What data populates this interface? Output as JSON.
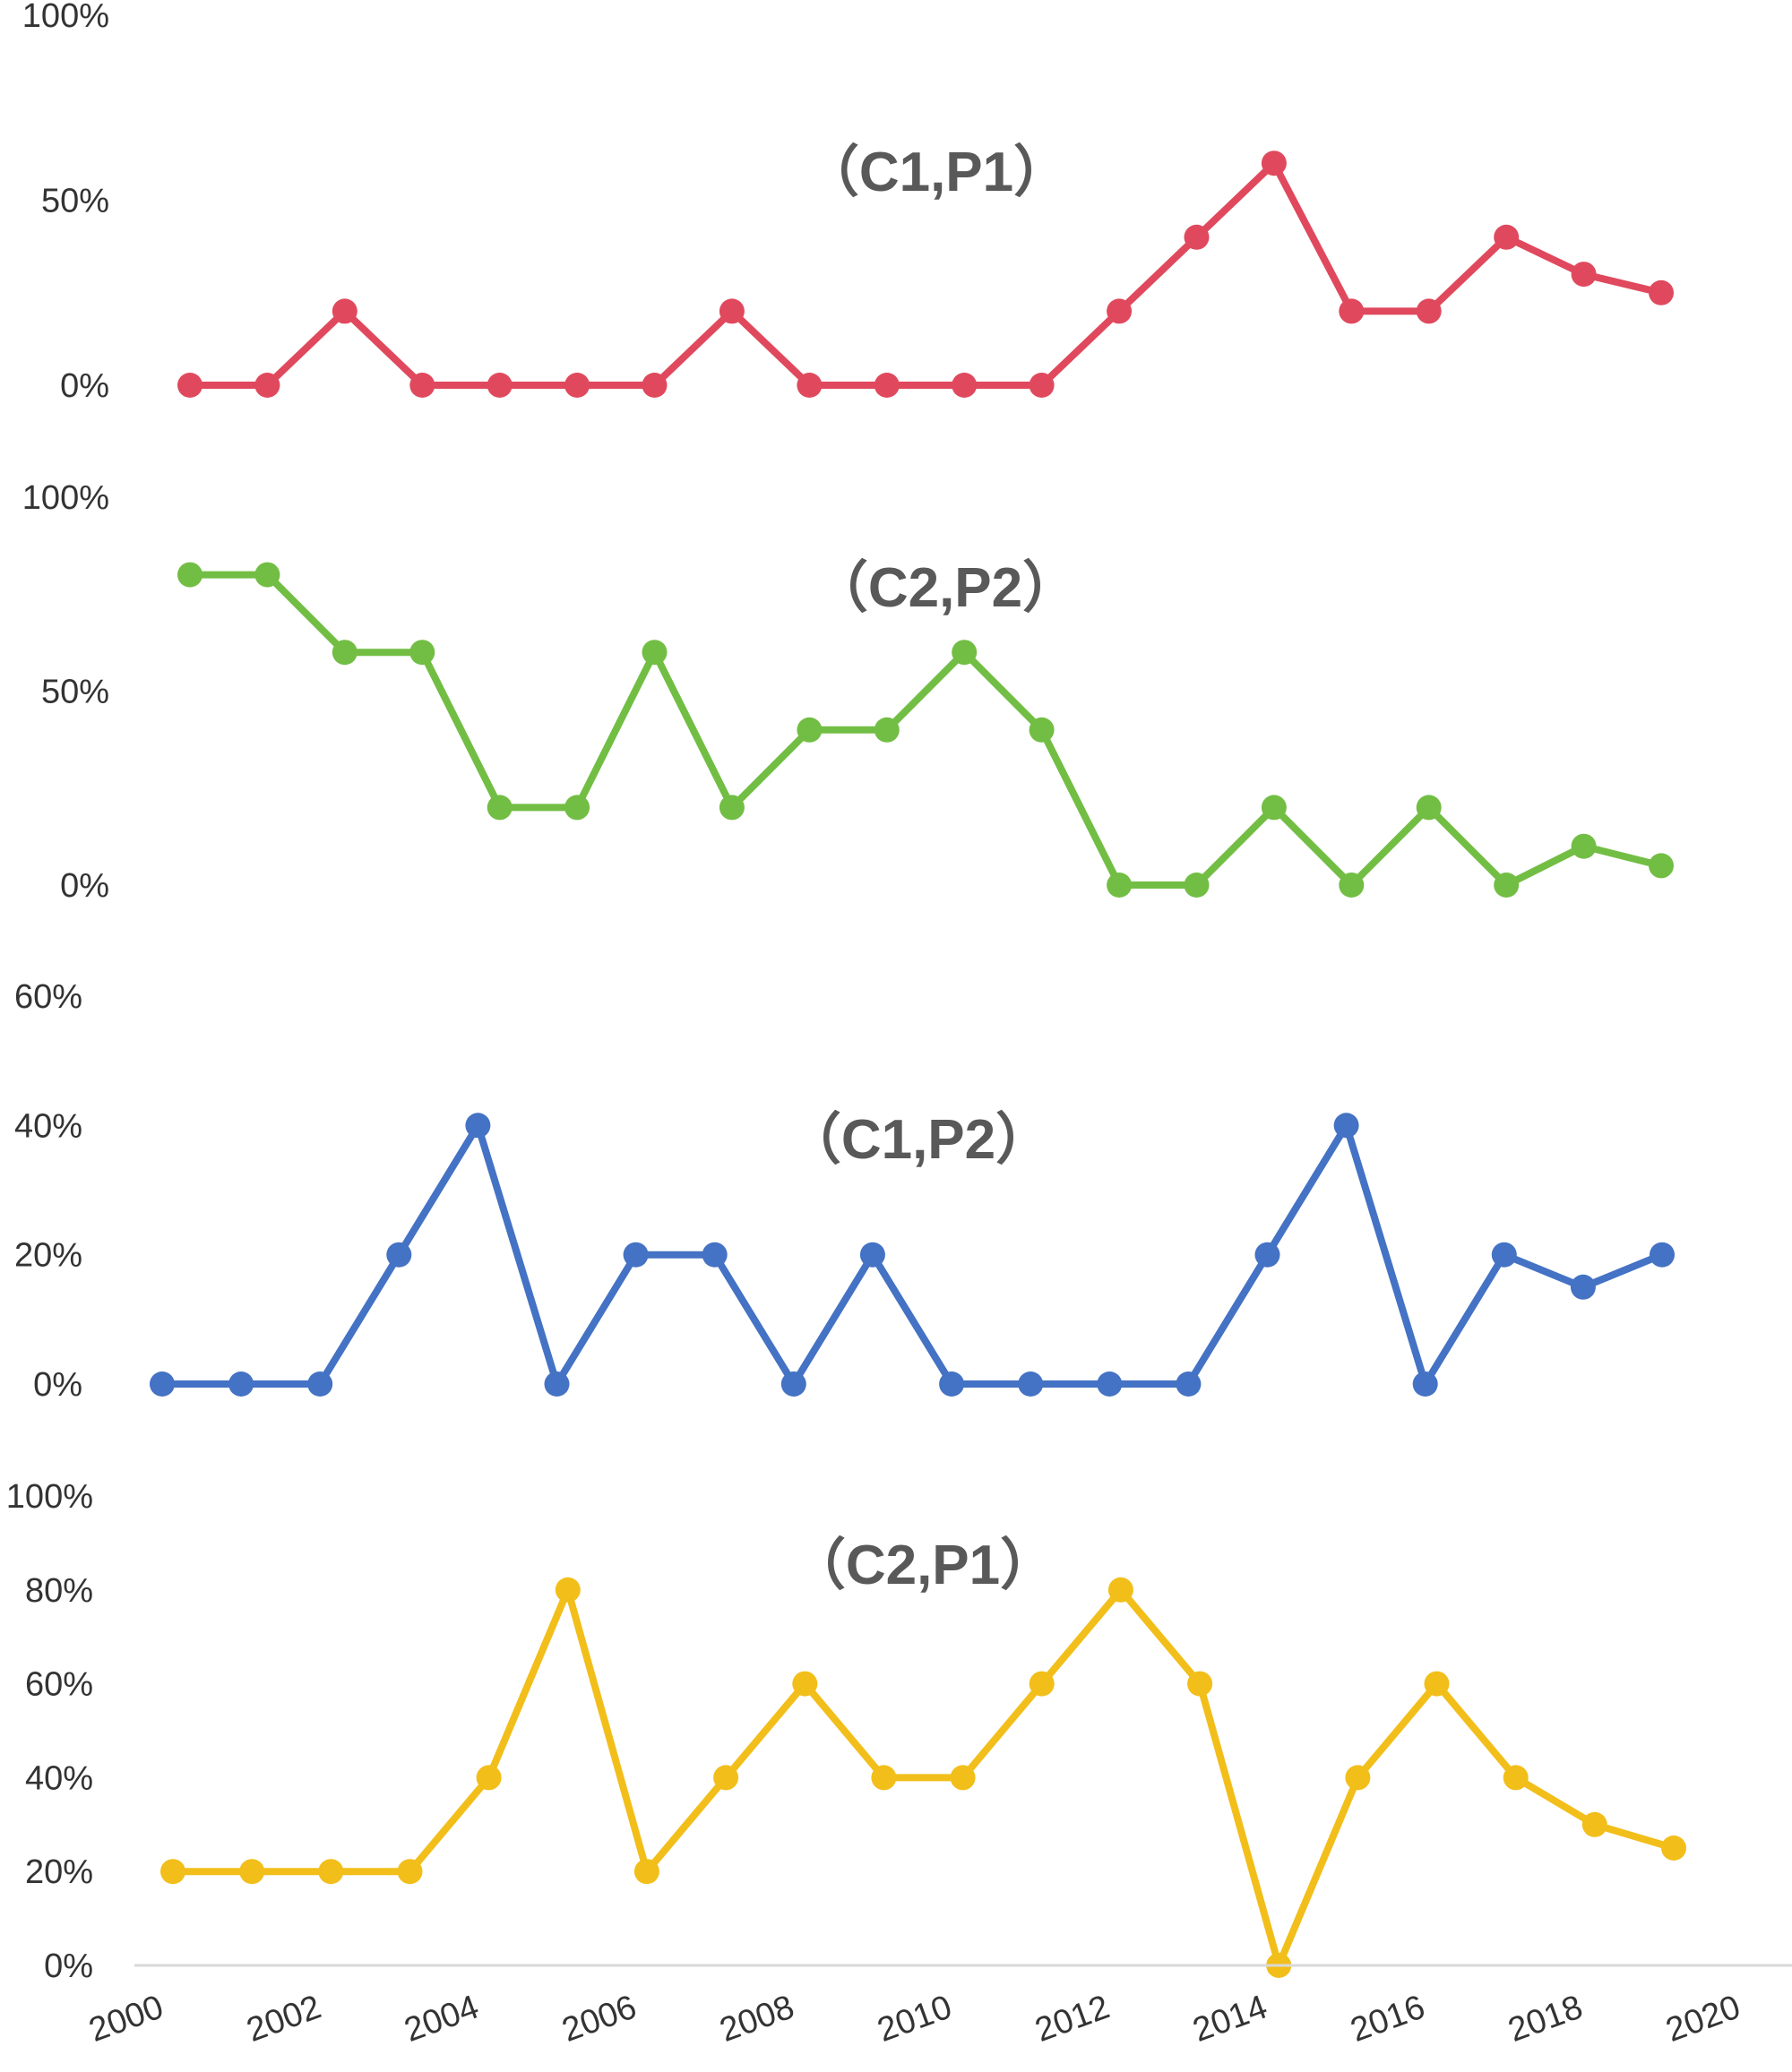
{
  "colors": {
    "red": "#E0495D",
    "green": "#72BE44",
    "blue": "#4472C4",
    "yellow": "#F2BE1A",
    "axis": "#D9D9D9",
    "text": "#333333",
    "title": "#595959"
  },
  "chart_data": [
    {
      "type": "line",
      "title": "（C1,P1）",
      "color": "#E0495D",
      "x": [
        2000,
        2001,
        2002,
        2003,
        2004,
        2005,
        2006,
        2007,
        2008,
        2009,
        2010,
        2011,
        2012,
        2013,
        2014,
        2015,
        2016,
        2017,
        2018,
        2019
      ],
      "values": [
        0,
        0,
        20,
        0,
        0,
        0,
        0,
        20,
        0,
        0,
        0,
        0,
        20,
        40,
        60,
        20,
        20,
        40,
        30,
        25
      ],
      "yticks": [
        "0%",
        "50%",
        "100%"
      ],
      "ylim": [
        0,
        100
      ]
    },
    {
      "type": "line",
      "title": "（C2,P2）",
      "color": "#72BE44",
      "x": [
        2000,
        2001,
        2002,
        2003,
        2004,
        2005,
        2006,
        2007,
        2008,
        2009,
        2010,
        2011,
        2012,
        2013,
        2014,
        2015,
        2016,
        2017,
        2018,
        2019
      ],
      "values": [
        80,
        80,
        60,
        60,
        20,
        20,
        60,
        20,
        40,
        40,
        60,
        40,
        0,
        0,
        20,
        0,
        20,
        0,
        10,
        5
      ],
      "yticks": [
        "0%",
        "50%",
        "100%"
      ],
      "ylim": [
        0,
        100
      ]
    },
    {
      "type": "line",
      "title": "（C1,P2）",
      "color": "#4472C4",
      "x": [
        2000,
        2001,
        2002,
        2003,
        2004,
        2005,
        2006,
        2007,
        2008,
        2009,
        2010,
        2011,
        2012,
        2013,
        2014,
        2015,
        2016,
        2017,
        2018,
        2019
      ],
      "values": [
        0,
        0,
        0,
        20,
        40,
        0,
        20,
        20,
        0,
        20,
        0,
        0,
        0,
        0,
        20,
        40,
        0,
        20,
        15,
        20
      ],
      "yticks": [
        "0%",
        "20%",
        "40%",
        "60%"
      ],
      "ylim": [
        0,
        60
      ]
    },
    {
      "type": "line",
      "title": "（C2,P1）",
      "color": "#F2BE1A",
      "x": [
        2000,
        2001,
        2002,
        2003,
        2004,
        2005,
        2006,
        2007,
        2008,
        2009,
        2010,
        2011,
        2012,
        2013,
        2014,
        2015,
        2016,
        2017,
        2018,
        2019
      ],
      "values": [
        20,
        20,
        20,
        20,
        40,
        80,
        20,
        40,
        60,
        40,
        40,
        60,
        80,
        60,
        0,
        40,
        60,
        40,
        30,
        25
      ],
      "yticks": [
        "0%",
        "20%",
        "40%",
        "60%",
        "80%",
        "100%"
      ],
      "ylim": [
        0,
        100
      ]
    }
  ],
  "x_axis": {
    "ticks": [
      "2000",
      "2002",
      "2004",
      "2006",
      "2008",
      "2010",
      "2012",
      "2014",
      "2016",
      "2018",
      "2020"
    ]
  }
}
